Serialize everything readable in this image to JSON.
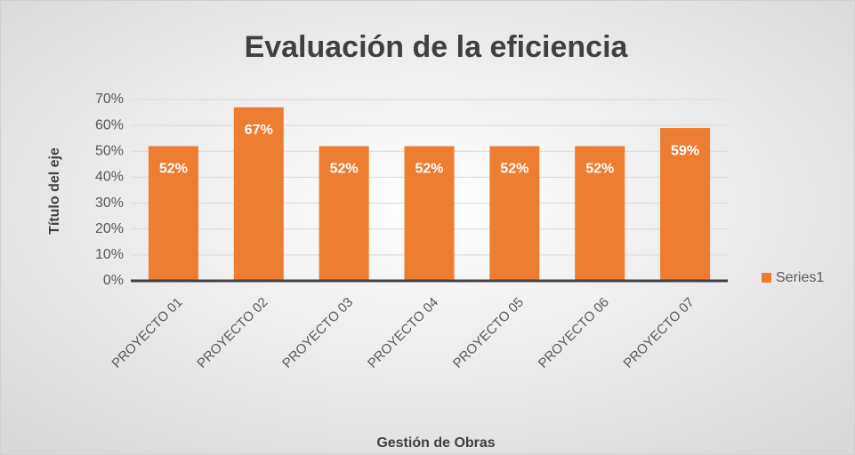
{
  "chart_data": {
    "type": "bar",
    "title": "Evaluación de la eficiencia",
    "x_label": "Gestión de Obras",
    "y_label": "Título del eje",
    "categories": [
      "PROYECTO 01",
      "PROYECTO 02",
      "PROYECTO 03",
      "PROYECTO 04",
      "PROYECTO 05",
      "PROYECTO 06",
      "PROYECTO 07"
    ],
    "series": [
      {
        "name": "Series1",
        "color": "#ed7d31",
        "values": [
          52,
          67,
          52,
          52,
          52,
          52,
          59
        ],
        "value_labels": [
          "52%",
          "67%",
          "52%",
          "52%",
          "52%",
          "52%",
          "59%"
        ]
      }
    ],
    "ylim": [
      0,
      70
    ],
    "yticks": [
      {
        "value": 0,
        "label": "0%"
      },
      {
        "value": 10,
        "label": "10%"
      },
      {
        "value": 20,
        "label": "20%"
      },
      {
        "value": 30,
        "label": "30%"
      },
      {
        "value": 40,
        "label": "40%"
      },
      {
        "value": 50,
        "label": "50%"
      },
      {
        "value": 60,
        "label": "60%"
      },
      {
        "value": 70,
        "label": "70%"
      }
    ],
    "grid": true,
    "legend": "right"
  }
}
